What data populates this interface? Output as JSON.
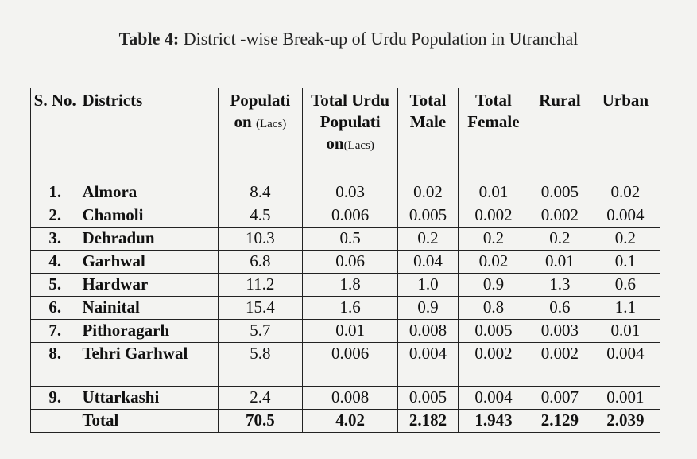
{
  "caption": {
    "label": "Table 4:",
    "text": " District -wise Break-up of Urdu Population in Utranchal"
  },
  "headers": {
    "sno": "S. No.",
    "districts": "Districts",
    "population": "Populati on",
    "population_unit": "(Lacs)",
    "total_urdu": "Total Urdu Populati on",
    "total_urdu_unit": "(Lacs)",
    "total_male": "Total Male",
    "total_female": "Total Female",
    "rural": "Rural",
    "urban": "Urban"
  },
  "rows": [
    {
      "sno": "1.",
      "district": "Almora",
      "population": "8.4",
      "urdu": "0.03",
      "male": "0.02",
      "female": "0.01",
      "rural": "0.005",
      "urban": "0.02"
    },
    {
      "sno": "2.",
      "district": "Chamoli",
      "population": "4.5",
      "urdu": "0.006",
      "male": "0.005",
      "female": "0.002",
      "rural": "0.002",
      "urban": "0.004"
    },
    {
      "sno": "3.",
      "district": "Dehradun",
      "population": "10.3",
      "urdu": "0.5",
      "male": "0.2",
      "female": "0.2",
      "rural": "0.2",
      "urban": "0.2"
    },
    {
      "sno": "4.",
      "district": "Garhwal",
      "population": "6.8",
      "urdu": "0.06",
      "male": "0.04",
      "female": "0.02",
      "rural": "0.01",
      "urban": "0.1"
    },
    {
      "sno": "5.",
      "district": "Hardwar",
      "population": "11.2",
      "urdu": "1.8",
      "male": "1.0",
      "female": "0.9",
      "rural": "1.3",
      "urban": "0.6"
    },
    {
      "sno": "6.",
      "district": "Nainital",
      "population": "15.4",
      "urdu": "1.6",
      "male": "0.9",
      "female": "0.8",
      "rural": "0.6",
      "urban": "1.1"
    },
    {
      "sno": "7.",
      "district": "Pithoragarh",
      "population": "5.7",
      "urdu": "0.01",
      "male": "0.008",
      "female": "0.005",
      "rural": "0.003",
      "urban": "0.01"
    },
    {
      "sno": "8.",
      "district": "Tehri Garhwal",
      "population": "5.8",
      "urdu": "0.006",
      "male": "0.004",
      "female": "0.002",
      "rural": "0.002",
      "urban": "0.004"
    },
    {
      "sno": "9.",
      "district": "Uttarkashi",
      "population": "2.4",
      "urdu": "0.008",
      "male": "0.005",
      "female": "0.004",
      "rural": "0.007",
      "urban": "0.001"
    }
  ],
  "total": {
    "label": "Total",
    "population": "70.5",
    "urdu": "4.02",
    "male": "2.182",
    "female": "1.943",
    "rural": "2.129",
    "urban": "2.039"
  }
}
